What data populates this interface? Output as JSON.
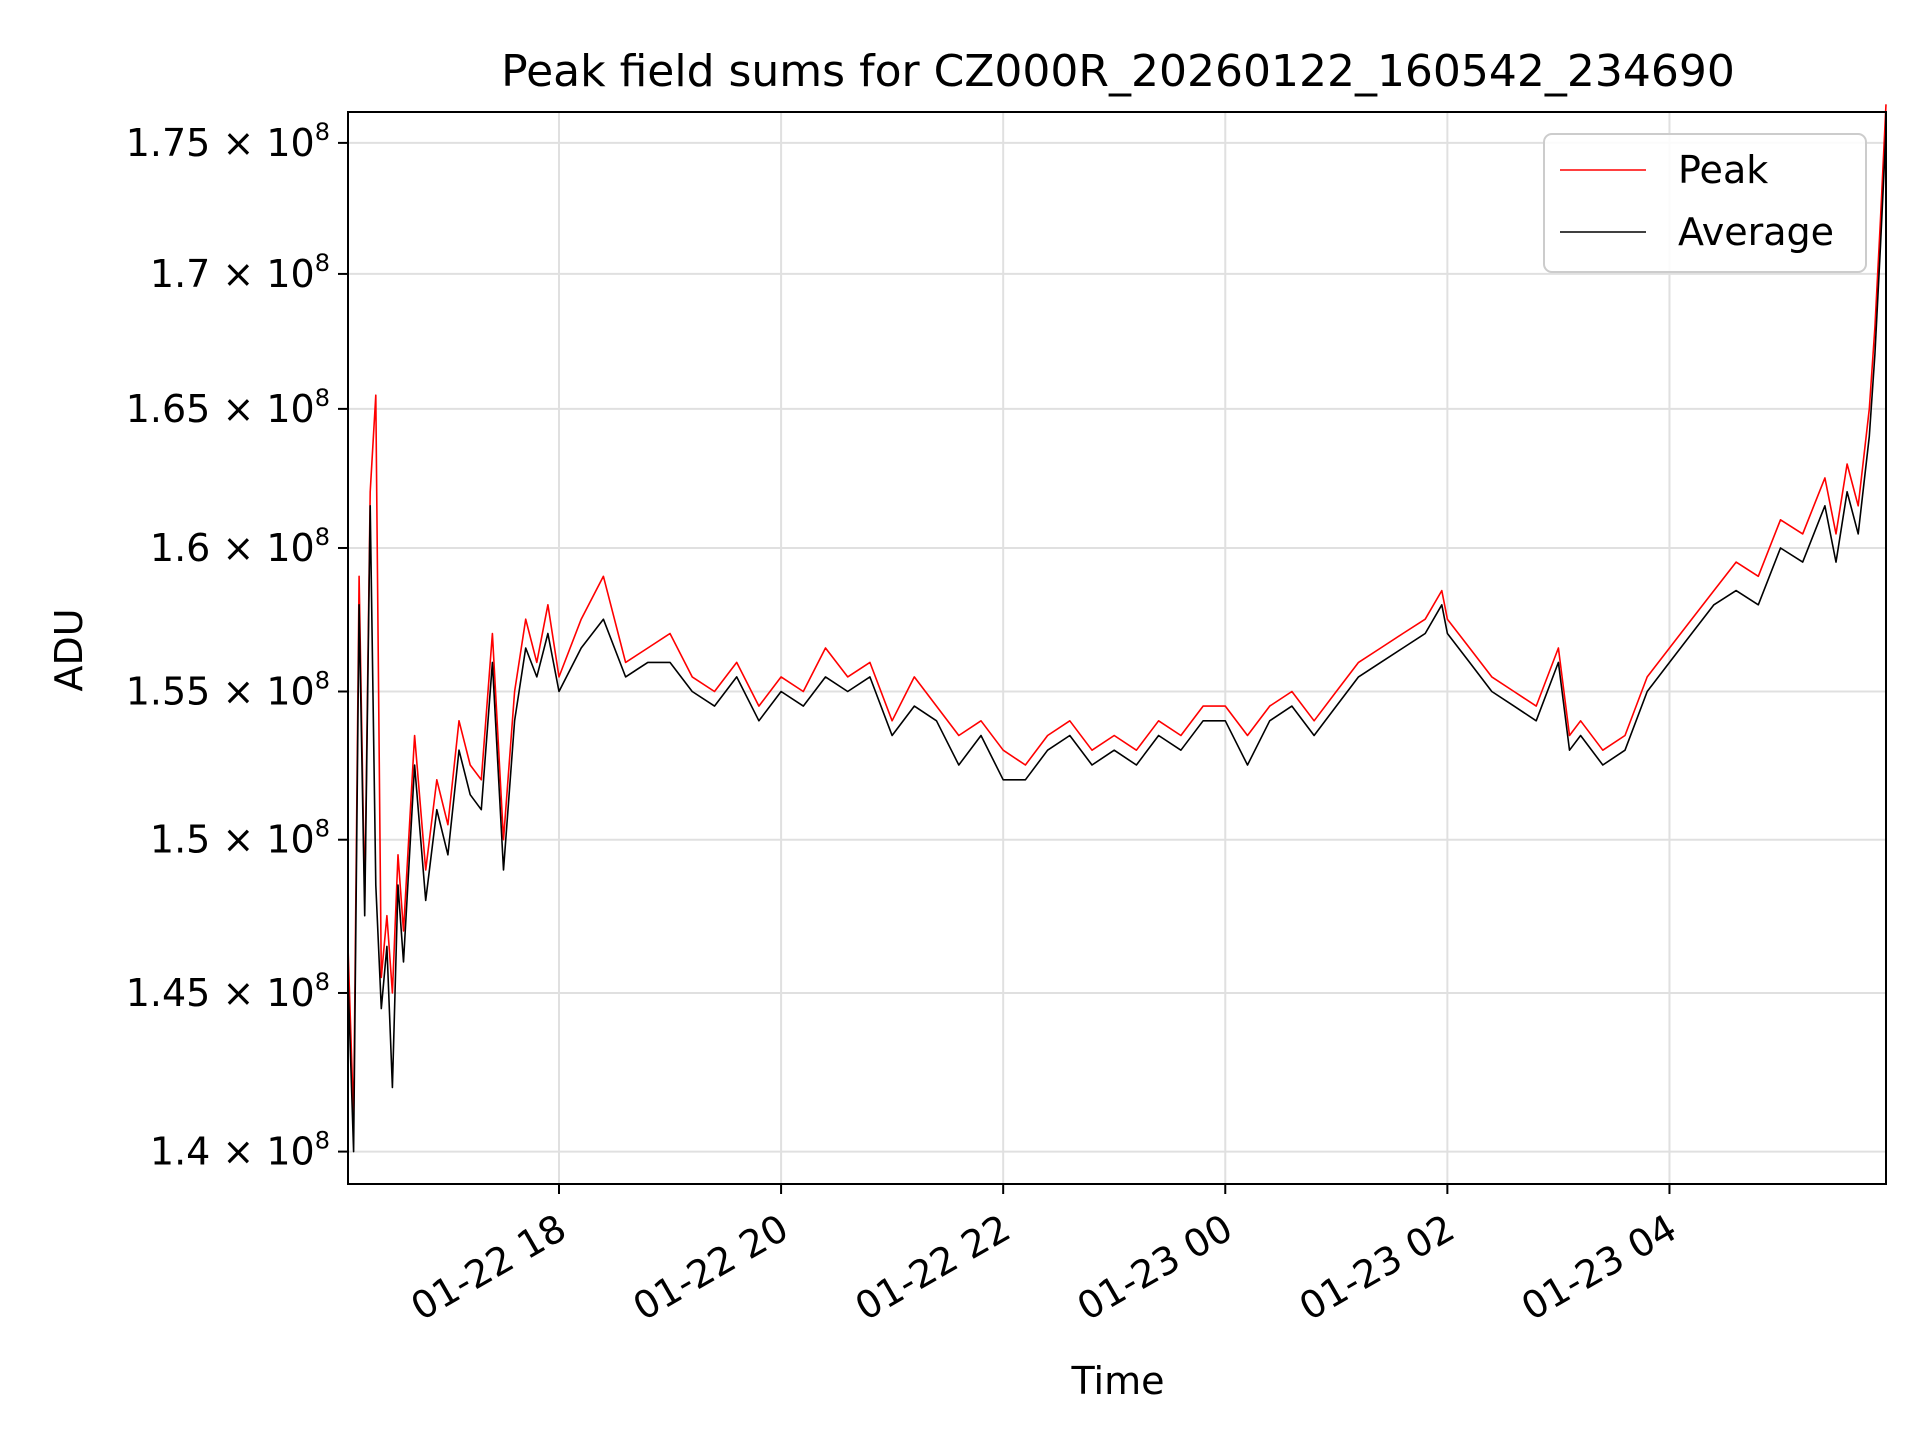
{
  "chart_data": {
    "type": "line",
    "title": "Peak field sums for CZ000R_20260122_160542_234690",
    "xlabel": "Time",
    "ylabel": "ADU",
    "yscale": "log",
    "ylim": [
      139000000,
      176200000
    ],
    "xlim_hours": [
      16.1,
      5.95
    ],
    "grid": true,
    "legend_position": "top-right",
    "colors": {
      "Peak": "#ff0000",
      "Average": "#000000",
      "grid": "#e0e0e0",
      "axes": "#000000"
    },
    "yticks": [
      {
        "value": 140000000,
        "mantissa": "1.4"
      },
      {
        "value": 145000000,
        "mantissa": "1.45"
      },
      {
        "value": 150000000,
        "mantissa": "1.5"
      },
      {
        "value": 155000000,
        "mantissa": "1.55"
      },
      {
        "value": 160000000,
        "mantissa": "1.6"
      },
      {
        "value": 165000000,
        "mantissa": "1.65"
      },
      {
        "value": 170000000,
        "mantissa": "1.7"
      },
      {
        "value": 175000000,
        "mantissa": "1.75"
      }
    ],
    "ytick_suffix": "× 10",
    "ytick_exponent": "8",
    "xticks": [
      {
        "hour": 18,
        "label": "01-22 18"
      },
      {
        "hour": 20,
        "label": "01-22 20"
      },
      {
        "hour": 22,
        "label": "01-22 22"
      },
      {
        "hour": 24,
        "label": "01-23 00"
      },
      {
        "hour": 26,
        "label": "01-23 02"
      },
      {
        "hour": 28,
        "label": "01-23 04"
      }
    ],
    "series": [
      {
        "name": "Peak",
        "x_hours": [
          16.1,
          16.15,
          16.2,
          16.25,
          16.3,
          16.35,
          16.4,
          16.45,
          16.5,
          16.55,
          16.6,
          16.7,
          16.8,
          16.9,
          17.0,
          17.1,
          17.2,
          17.3,
          17.4,
          17.5,
          17.6,
          17.7,
          17.8,
          17.9,
          18.0,
          18.2,
          18.4,
          18.6,
          18.8,
          19.0,
          19.2,
          19.4,
          19.6,
          19.8,
          20.0,
          20.2,
          20.4,
          20.6,
          20.8,
          21.0,
          21.2,
          21.4,
          21.6,
          21.8,
          22.0,
          22.2,
          22.4,
          22.6,
          22.8,
          23.0,
          23.2,
          23.4,
          23.6,
          23.8,
          24.0,
          24.2,
          24.4,
          24.6,
          24.8,
          25.0,
          25.2,
          25.4,
          25.6,
          25.8,
          25.95,
          26.0,
          26.2,
          26.4,
          26.6,
          26.8,
          27.0,
          27.1,
          27.2,
          27.4,
          27.6,
          27.8,
          28.0,
          28.2,
          28.4,
          28.6,
          28.8,
          29.0,
          29.2,
          29.4,
          29.5,
          29.6,
          29.7,
          29.8,
          29.85,
          29.9,
          29.95
        ],
        "values": [
          146500000,
          141000000,
          159000000,
          148000000,
          162000000,
          165500000,
          145500000,
          147500000,
          145000000,
          149500000,
          147000000,
          153500000,
          149000000,
          152000000,
          150500000,
          154000000,
          152500000,
          152000000,
          157000000,
          150000000,
          155000000,
          157500000,
          156000000,
          158000000,
          155500000,
          157500000,
          159000000,
          156000000,
          156500000,
          157000000,
          155500000,
          155000000,
          156000000,
          154500000,
          155500000,
          155000000,
          156500000,
          155500000,
          156000000,
          154000000,
          155500000,
          154500000,
          153500000,
          154000000,
          153000000,
          152500000,
          153500000,
          154000000,
          153000000,
          153500000,
          153000000,
          154000000,
          153500000,
          154500000,
          154500000,
          153500000,
          154500000,
          155000000,
          154000000,
          155000000,
          156000000,
          156500000,
          157000000,
          157500000,
          158500000,
          157500000,
          156500000,
          155500000,
          155000000,
          154500000,
          156500000,
          153500000,
          154000000,
          153000000,
          153500000,
          155500000,
          156500000,
          157500000,
          158500000,
          159500000,
          159000000,
          161000000,
          160500000,
          162500000,
          160500000,
          163000000,
          161500000,
          165000000,
          168000000,
          172000000,
          176500000
        ]
      },
      {
        "name": "Average",
        "x_hours": [
          16.1,
          16.15,
          16.2,
          16.25,
          16.3,
          16.35,
          16.4,
          16.45,
          16.5,
          16.55,
          16.6,
          16.7,
          16.8,
          16.9,
          17.0,
          17.1,
          17.2,
          17.3,
          17.4,
          17.5,
          17.6,
          17.7,
          17.8,
          17.9,
          18.0,
          18.2,
          18.4,
          18.6,
          18.8,
          19.0,
          19.2,
          19.4,
          19.6,
          19.8,
          20.0,
          20.2,
          20.4,
          20.6,
          20.8,
          21.0,
          21.2,
          21.4,
          21.6,
          21.8,
          22.0,
          22.2,
          22.4,
          22.6,
          22.8,
          23.0,
          23.2,
          23.4,
          23.6,
          23.8,
          24.0,
          24.2,
          24.4,
          24.6,
          24.8,
          25.0,
          25.2,
          25.4,
          25.6,
          25.8,
          25.95,
          26.0,
          26.2,
          26.4,
          26.6,
          26.8,
          27.0,
          27.1,
          27.2,
          27.4,
          27.6,
          27.8,
          28.0,
          28.2,
          28.4,
          28.6,
          28.8,
          29.0,
          29.2,
          29.4,
          29.5,
          29.6,
          29.7,
          29.8,
          29.85,
          29.9,
          29.95
        ],
        "values": [
          145500000,
          140000000,
          158000000,
          147500000,
          161500000,
          148500000,
          144500000,
          146500000,
          142000000,
          148500000,
          146000000,
          152500000,
          148000000,
          151000000,
          149500000,
          153000000,
          151500000,
          151000000,
          156000000,
          149000000,
          154000000,
          156500000,
          155500000,
          157000000,
          155000000,
          156500000,
          157500000,
          155500000,
          156000000,
          156000000,
          155000000,
          154500000,
          155500000,
          154000000,
          155000000,
          154500000,
          155500000,
          155000000,
          155500000,
          153500000,
          154500000,
          154000000,
          152500000,
          153500000,
          152000000,
          152000000,
          153000000,
          153500000,
          152500000,
          153000000,
          152500000,
          153500000,
          153000000,
          154000000,
          154000000,
          152500000,
          154000000,
          154500000,
          153500000,
          154500000,
          155500000,
          156000000,
          156500000,
          157000000,
          158000000,
          157000000,
          156000000,
          155000000,
          154500000,
          154000000,
          156000000,
          153000000,
          153500000,
          152500000,
          153000000,
          155000000,
          156000000,
          157000000,
          158000000,
          158500000,
          158000000,
          160000000,
          159500000,
          161500000,
          159500000,
          162000000,
          160500000,
          164000000,
          167000000,
          171000000,
          175500000
        ]
      }
    ]
  }
}
